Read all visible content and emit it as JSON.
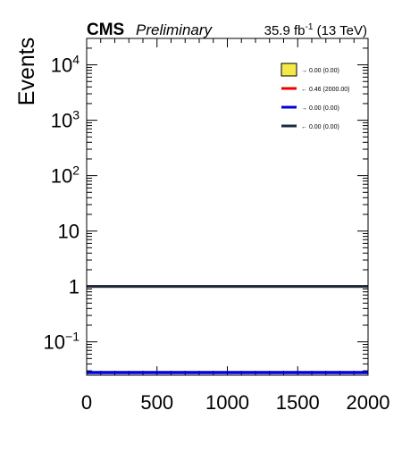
{
  "header": {
    "experiment": "CMS",
    "status": "Preliminary",
    "lumi_value": "35.9 fb",
    "lumi_exp": "-1",
    "energy": "(13 TeV)"
  },
  "chart_data": {
    "type": "line",
    "title": "",
    "xlabel": "",
    "ylabel": "Events",
    "xlim": [
      0,
      2000
    ],
    "ylim": [
      0.025,
      30000
    ],
    "yscale": "log",
    "grid": false,
    "legend_position": "top-right",
    "x_ticks": [
      {
        "value": 0,
        "label": "0"
      },
      {
        "value": 500,
        "label": "500"
      },
      {
        "value": 1000,
        "label": "1000"
      },
      {
        "value": 1500,
        "label": "1500"
      },
      {
        "value": 2000,
        "label": "2000"
      }
    ],
    "y_ticks": [
      {
        "value": 0.1,
        "base": "10",
        "exp": "−1"
      },
      {
        "value": 1,
        "base": "1",
        "exp": ""
      },
      {
        "value": 10,
        "base": "10",
        "exp": ""
      },
      {
        "value": 100,
        "base": "10",
        "exp": "2"
      },
      {
        "value": 1000,
        "base": "10",
        "exp": "3"
      },
      {
        "value": 10000,
        "base": "10",
        "exp": "4"
      }
    ],
    "series": [
      {
        "name": "→ 0.00 (0.00)",
        "kind": "fill",
        "color": "#f5e94a",
        "edge": "#000000",
        "x": [
          0,
          2000
        ],
        "y": [
          null,
          null
        ]
      },
      {
        "name": "← 0.46 (2000.00)",
        "kind": "line",
        "color": "#ee0000",
        "x": [
          0,
          2000
        ],
        "y": [
          1,
          1
        ]
      },
      {
        "name": "→ 0.00 (0.00)",
        "kind": "line",
        "color": "#0000dd",
        "x": [
          0,
          2000
        ],
        "y": [
          0.028,
          0.028
        ]
      },
      {
        "name": "← 0.00 (0.00)",
        "kind": "line",
        "color": "#1c2b3c",
        "x": [
          0,
          2000
        ],
        "y": [
          1,
          1
        ]
      }
    ]
  }
}
